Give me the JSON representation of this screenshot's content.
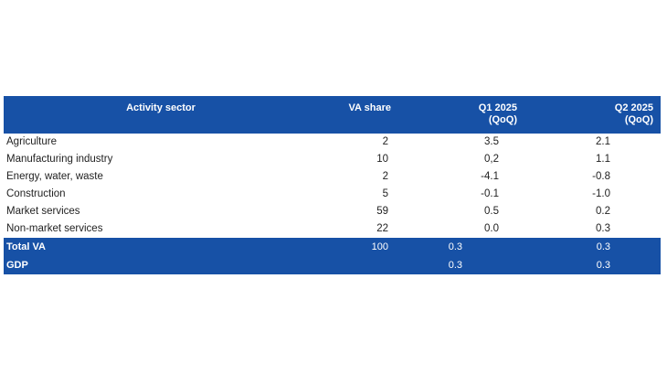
{
  "table": {
    "headers": {
      "sector": "Activity sector",
      "share": "VA share",
      "q1_line1": "Q1 2025",
      "q1_line2": "(QoQ)",
      "q2_line1": "Q2 2025",
      "q2_line2": "(QoQ)"
    },
    "rows": [
      {
        "sector": "Agriculture",
        "share": "2",
        "q1": "3.5",
        "q2": "2.1"
      },
      {
        "sector": "Manufacturing industry",
        "share": "10",
        "q1": "0,2",
        "q2": "1.1"
      },
      {
        "sector": "Energy, water, waste",
        "share": "2",
        "q1": "-4.1",
        "q2": "-0.8"
      },
      {
        "sector": "Construction",
        "share": "5",
        "q1": "-0.1",
        "q2": "-1.0"
      },
      {
        "sector": "Market services",
        "share": "59",
        "q1": "0.5",
        "q2": "0.2"
      },
      {
        "sector": "Non-market services",
        "share": "22",
        "q1": "0.0",
        "q2": "0.3"
      }
    ],
    "totals": [
      {
        "sector": "Total VA",
        "share": "100",
        "q1": "0.3",
        "q2": "0.3"
      },
      {
        "sector": "GDP",
        "share": "",
        "q1": "0.3",
        "q2": "0.3"
      }
    ],
    "colors": {
      "header_bg": "#1751a6",
      "header_text": "#ffffff",
      "body_text": "#222222"
    }
  }
}
